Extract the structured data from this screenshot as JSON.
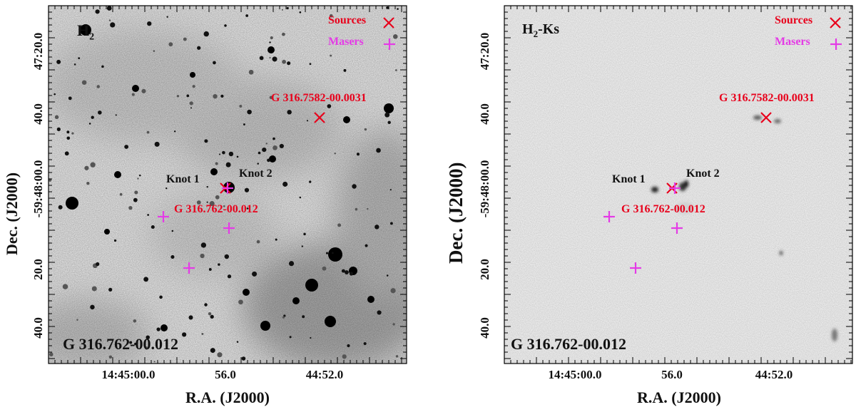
{
  "colors": {
    "source": "#e8001b",
    "maser": "#e43be6",
    "frame": "#000000",
    "background": "#ffffff"
  },
  "left": {
    "panel_label": "H",
    "panel_label_sub": "2",
    "legend_sources": "Sources",
    "legend_masers": "Masers",
    "source_label_1": "G 316.7582-00.0031",
    "source_label_2": "G 316.762-00.012",
    "knot_1": "Knot 1",
    "knot_2": "Knot 2",
    "field_name": "G 316.762-00.012",
    "x_axis_title": "R.A. (J2000)",
    "y_axis_title": "Dec. (J2000)",
    "x_ticks": [
      "14:45:00.0",
      "56.0",
      "44:52.0"
    ],
    "y_ticks": [
      "47:20.0",
      "40.0",
      "-59:48:00.0",
      "20.0",
      "40.0"
    ]
  },
  "right": {
    "panel_label": "H",
    "panel_label_sub": "2",
    "panel_label_rest": "-Ks",
    "legend_sources": "Sources",
    "legend_masers": "Masers",
    "source_label_1": "G 316.7582-00.0031",
    "source_label_2": "G 316.762-00.012",
    "knot_1": "Knot 1",
    "knot_2": "Knot 2",
    "field_name": "G 316.762-00.012",
    "x_axis_title": "R.A. (J2000)",
    "y_axis_title": "Dec. (J2000)",
    "x_ticks": [
      "14:45:00.0",
      "56.0",
      "44:52.0"
    ],
    "y_ticks": [
      "47:20.0",
      "40.0",
      "-59:48:00.0",
      "20.0",
      "40.0"
    ]
  }
}
